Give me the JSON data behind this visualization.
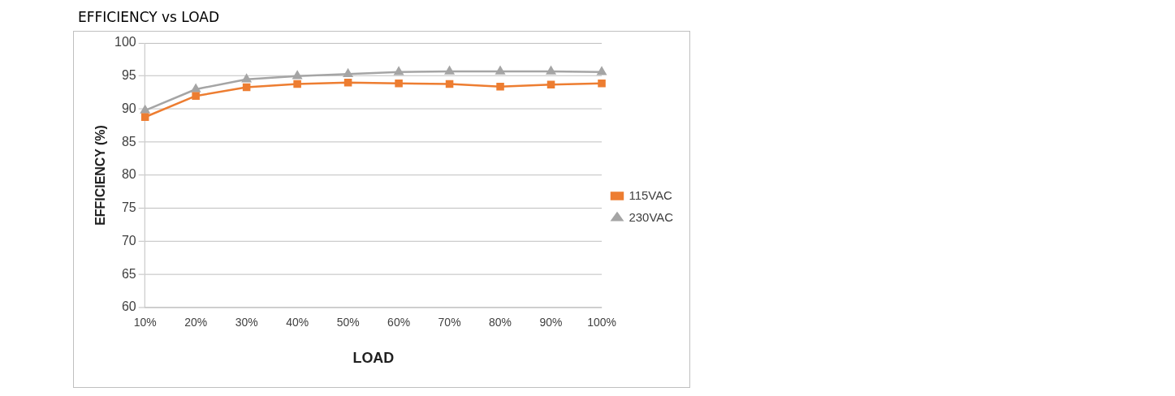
{
  "chart_data": {
    "type": "line",
    "title": "EFFICIENCY vs LOAD",
    "xlabel": "LOAD",
    "ylabel": "EFFICIENCY (%)",
    "categories": [
      "10%",
      "20%",
      "30%",
      "40%",
      "50%",
      "60%",
      "70%",
      "80%",
      "90%",
      "100%"
    ],
    "series": [
      {
        "name": "115VAC",
        "color": "#ed7d31",
        "marker": "square",
        "values": [
          88.8,
          92.0,
          93.3,
          93.8,
          94.0,
          93.9,
          93.8,
          93.4,
          93.7,
          93.9
        ]
      },
      {
        "name": "230VAC",
        "color": "#a5a5a5",
        "marker": "triangle",
        "values": [
          89.8,
          93.0,
          94.5,
          95.0,
          95.3,
          95.6,
          95.7,
          95.7,
          95.7,
          95.6
        ]
      }
    ],
    "ylim": [
      60,
      100
    ],
    "yticks": [
      60,
      65,
      70,
      75,
      80,
      85,
      90,
      95,
      100
    ],
    "grid": "y",
    "legend": "right"
  }
}
